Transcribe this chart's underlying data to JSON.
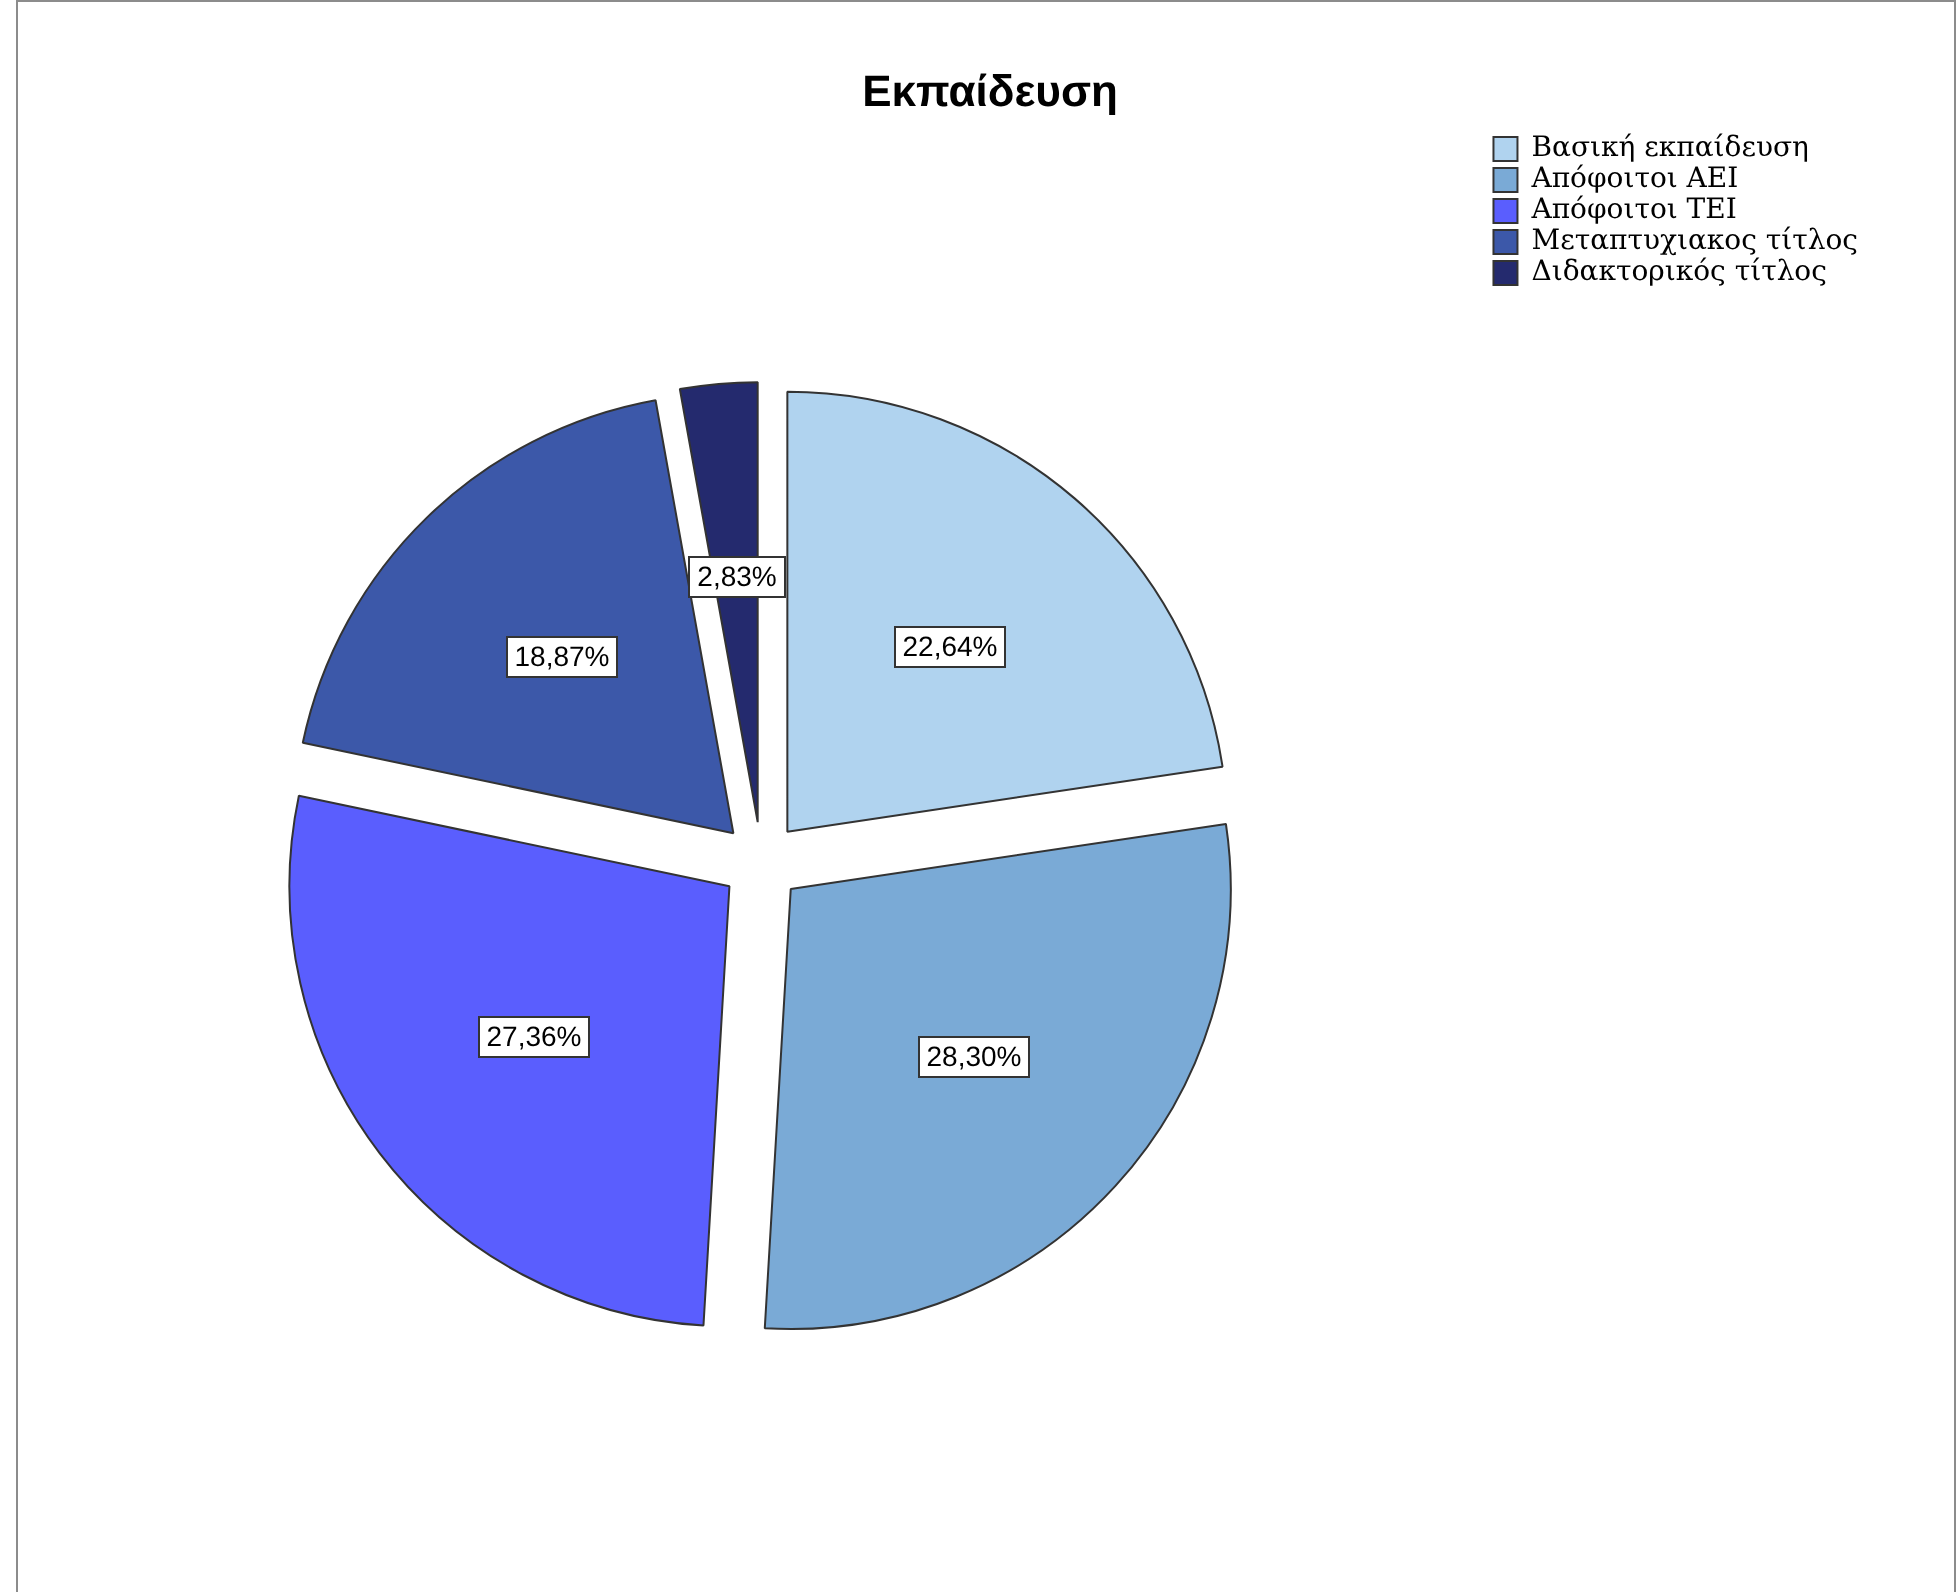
{
  "chart_data": {
    "type": "pie",
    "title": "Εκπαίδευση",
    "categories": [
      "Βασική εκπαίδευση",
      "Απόφοιτοι ΑΕΙ",
      "Απόφοιτοι ΤΕΙ",
      "Μεταπτυχιακος τίτλος",
      "Διδακτορικός τίτλος"
    ],
    "values": [
      22.64,
      28.3,
      27.36,
      18.87,
      2.83
    ],
    "colors": [
      "#b0d3ef",
      "#7aaad6",
      "#5a5efe",
      "#3c58a9",
      "#242a6e"
    ],
    "value_labels": [
      "22,64%",
      "28,30%",
      "27,36%",
      "18,87%",
      "2,83%"
    ],
    "legend": "top right"
  }
}
